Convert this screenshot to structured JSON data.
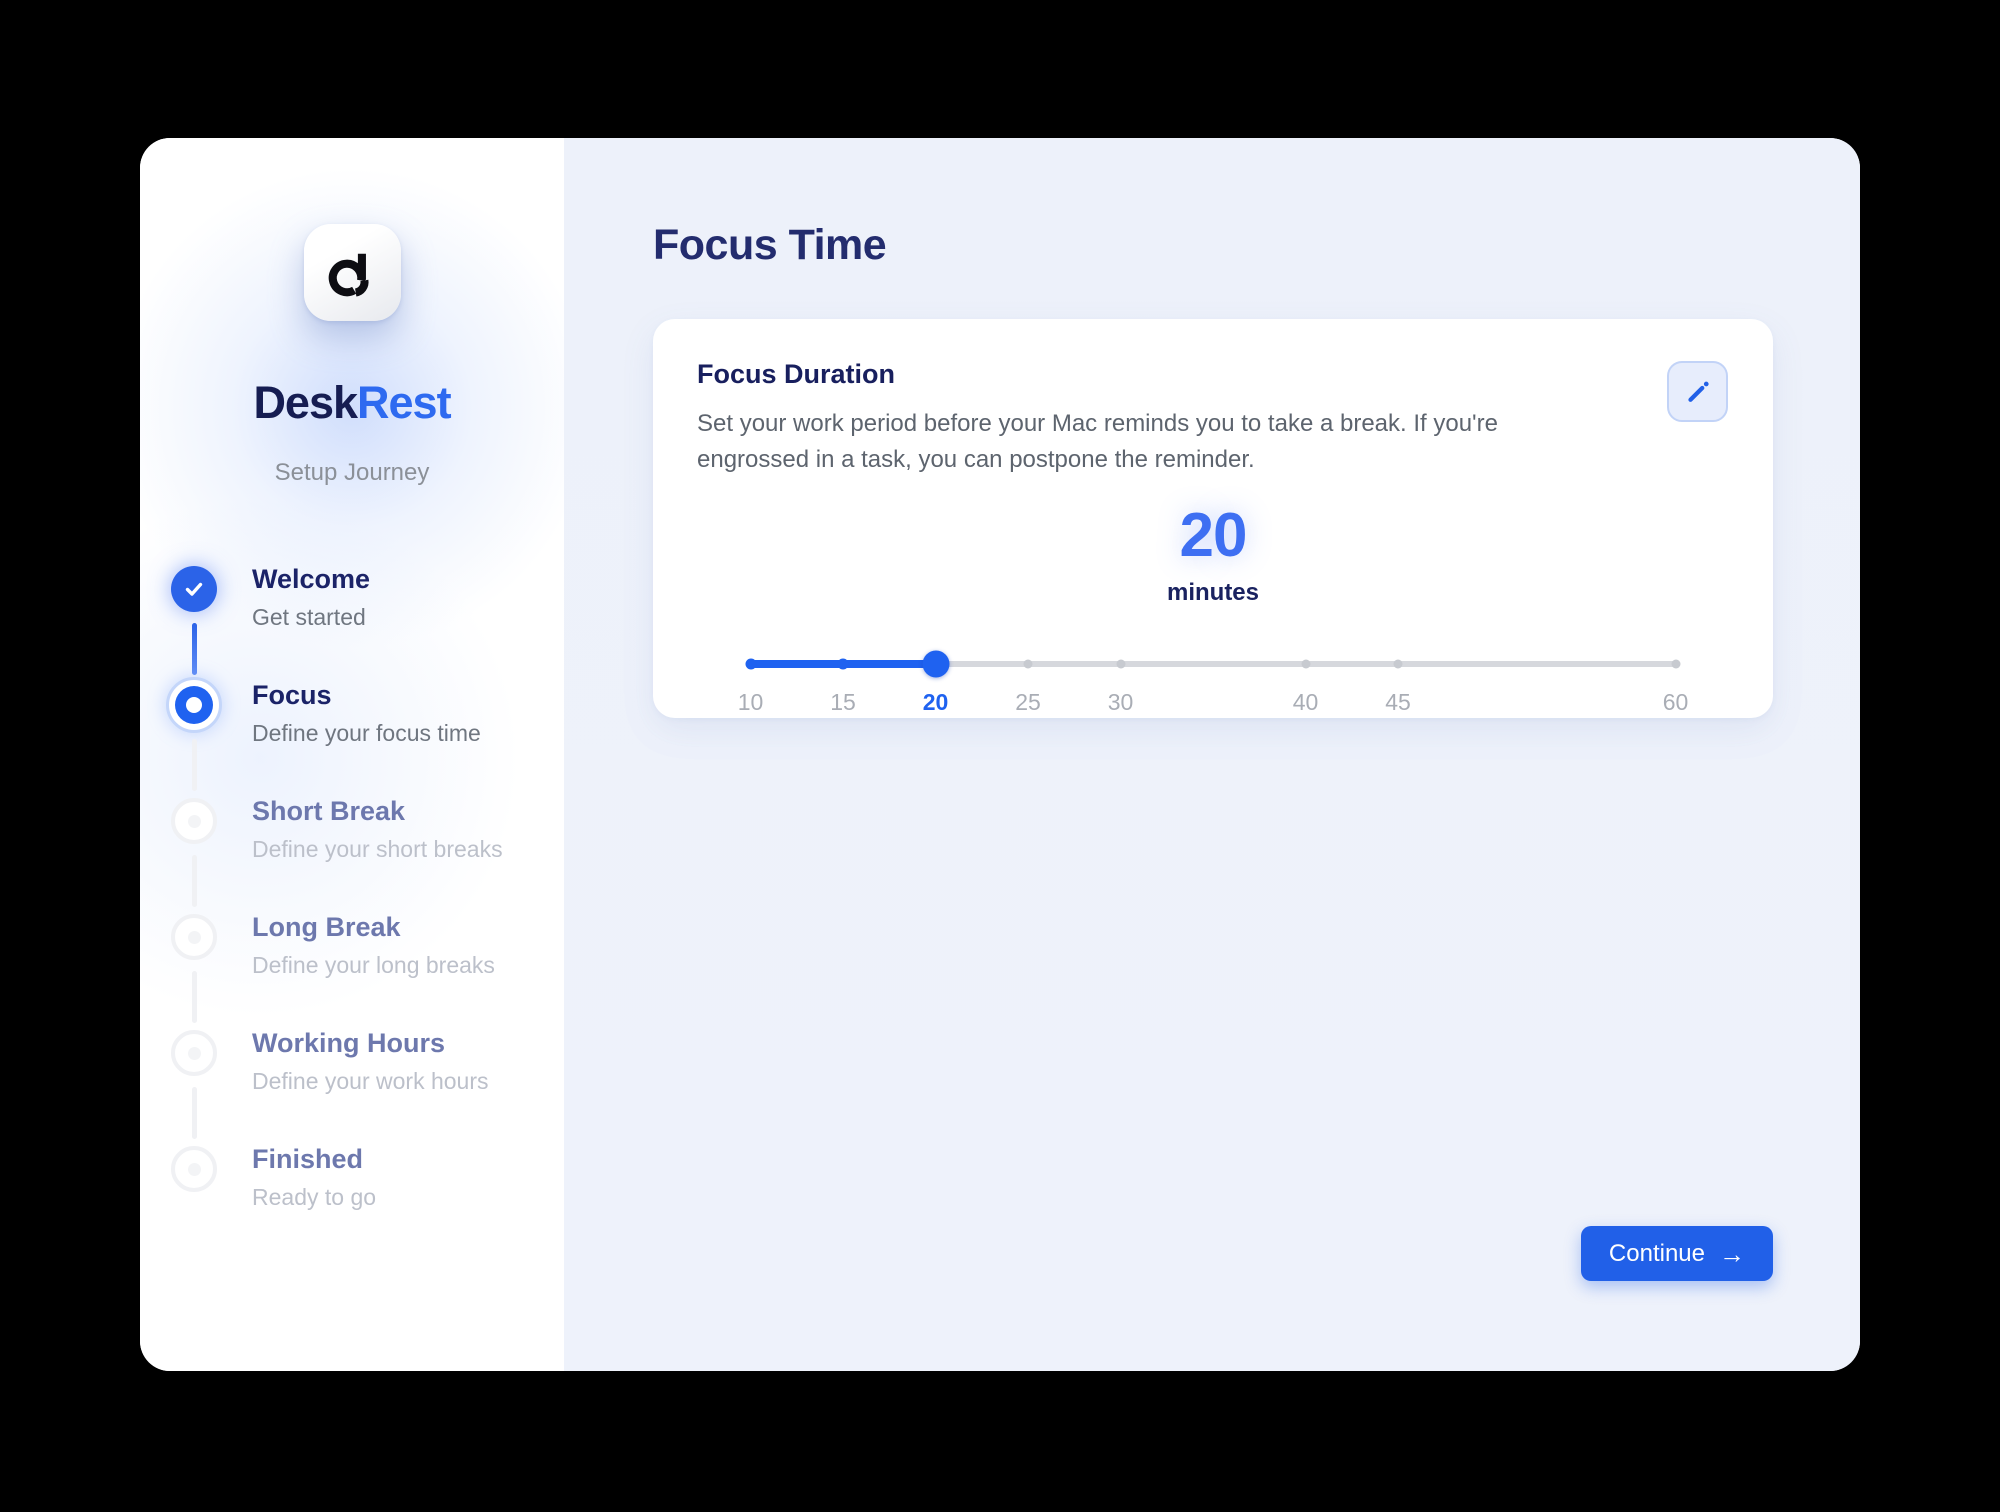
{
  "app": {
    "name_primary": "Desk",
    "name_secondary": "Rest",
    "subtitle": "Setup Journey",
    "logo_icon": "deskrest-d-logo"
  },
  "sidebar": {
    "steps": [
      {
        "title": "Welcome",
        "subtitle": "Get started",
        "state": "completed"
      },
      {
        "title": "Focus",
        "subtitle": "Define your focus time",
        "state": "active"
      },
      {
        "title": "Short Break",
        "subtitle": "Define your short breaks",
        "state": "upcoming"
      },
      {
        "title": "Long Break",
        "subtitle": "Define your long breaks",
        "state": "upcoming"
      },
      {
        "title": "Working Hours",
        "subtitle": "Define your work hours",
        "state": "upcoming"
      },
      {
        "title": "Finished",
        "subtitle": "Ready to go",
        "state": "upcoming"
      }
    ]
  },
  "main": {
    "page_title": "Focus Time",
    "card": {
      "title": "Focus Duration",
      "description": "Set your work period before your Mac reminds you to take a break. If you're engrossed in a task, you can postpone the reminder.",
      "value": "20",
      "unit": "minutes",
      "edit_icon": "pencil-icon",
      "slider": {
        "min": 10,
        "max": 60,
        "value": 20,
        "ticks": [
          10,
          15,
          20,
          25,
          30,
          40,
          45,
          60
        ]
      }
    },
    "continue_button": {
      "label": "Continue",
      "icon": "arrow-right-icon"
    }
  },
  "colors": {
    "accent_blue": "#2160e8",
    "bright_blue": "#3e6ff2",
    "navy": "#1b2368",
    "muted_step_title": "#6d78ad",
    "gray_text": "#5d646e",
    "light_gray_text": "#bcc0ca",
    "main_background": "#eef2fb",
    "track_gray": "#d6d8dd"
  }
}
